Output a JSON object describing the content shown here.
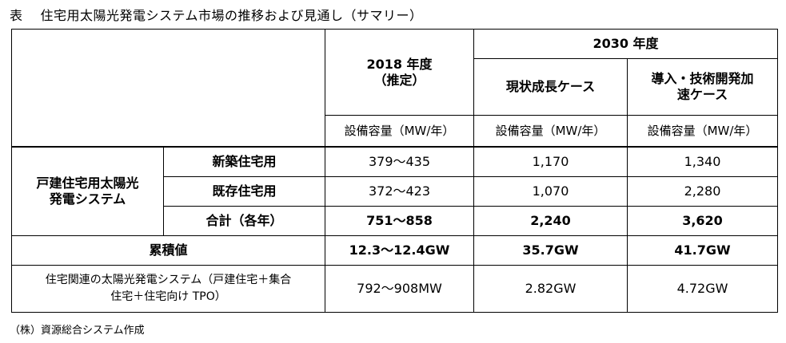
{
  "title": {
    "label": "表",
    "text": "住宅用太陽光発電システム市場の推移および見通し（サマリー）"
  },
  "header": {
    "col2018": "2018 年度\n（推定）",
    "col2030": "2030 年度",
    "case_growth": "現状成長ケース",
    "case_accel": "導入・技術開発加\n速ケース",
    "unit": "設備容量（MW/年）"
  },
  "group_label": "戸建住宅用太陽光\n発電システム",
  "rows": [
    {
      "label": "新築住宅用",
      "y2018": "379～435",
      "growth": "1,170",
      "accel": "1,340"
    },
    {
      "label": "既存住宅用",
      "y2018": "372～423",
      "growth": "1,070",
      "accel": "2,280"
    },
    {
      "label": "合計（各年）",
      "y2018": "751～858",
      "growth": "2,240",
      "accel": "3,620"
    },
    {
      "label": "累積値",
      "y2018": "12.3～12.4GW",
      "growth": "35.7GW",
      "accel": "41.7GW"
    }
  ],
  "last_row": {
    "label": "住宅関連の太陽光発電システム（戸建住宅＋集合\n住宅＋住宅向け TPO）",
    "y2018": "792～908MW",
    "growth": "2.82GW",
    "accel": "4.72GW"
  },
  "footer": "（株）資源総合システム作成"
}
